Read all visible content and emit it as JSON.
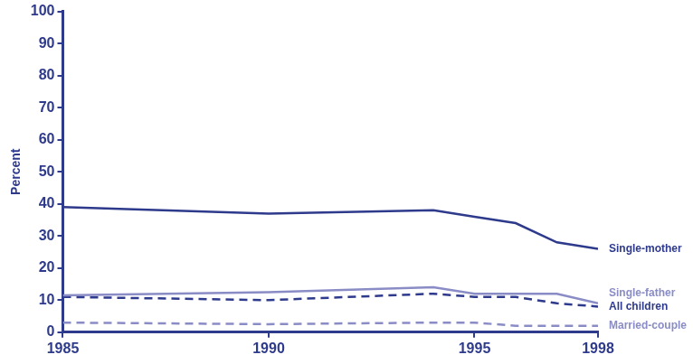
{
  "chart_data": {
    "type": "line",
    "y_label": "Percent",
    "x": [
      1985,
      1990,
      1994,
      1995,
      1996,
      1997,
      1998
    ],
    "series": [
      {
        "name": "Single-mother",
        "color": "#2e3a8c",
        "line_style": "solid",
        "values": [
          39,
          37,
          38,
          36,
          34,
          28,
          26
        ]
      },
      {
        "name": "Single-father",
        "color": "#8a8cc6",
        "line_style": "solid",
        "values": [
          11.5,
          12.5,
          14,
          12,
          12,
          12,
          9
        ]
      },
      {
        "name": "All children",
        "color": "#2e3a8c",
        "line_style": "dashed",
        "values": [
          11,
          10,
          12,
          11,
          11,
          9,
          8
        ]
      },
      {
        "name": "Married-couple",
        "color": "#8a8cc6",
        "line_style": "dashed",
        "values": [
          3,
          2.5,
          3,
          3,
          2,
          2,
          2
        ]
      }
    ],
    "xlim": [
      1985,
      1998
    ],
    "xticks": [
      1985,
      1990,
      1995,
      1998
    ],
    "ylim": [
      0,
      100
    ],
    "yticks": [
      0,
      10,
      20,
      30,
      40,
      50,
      60,
      70,
      80,
      90,
      100
    ],
    "grid": false
  }
}
